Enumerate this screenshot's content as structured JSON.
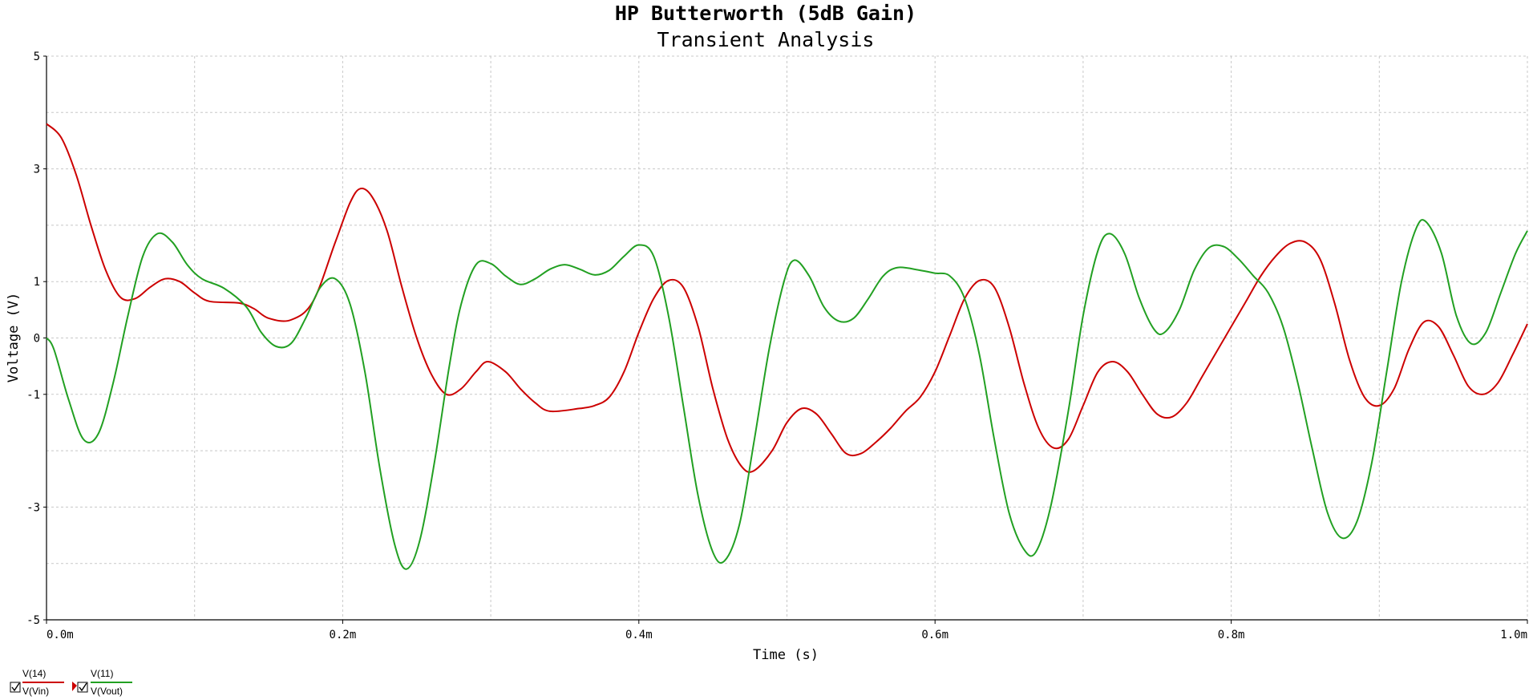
{
  "chart_data": {
    "type": "line",
    "title": "HP Butterworth (5dB Gain)",
    "subtitle": "Transient Analysis",
    "xlabel": "Time (s)",
    "ylabel": "Voltage (V)",
    "xlim": [
      0,
      1.0
    ],
    "ylim": [
      -5,
      5
    ],
    "x_ticks": [
      0,
      0.2,
      0.4,
      0.6,
      0.8,
      1.0
    ],
    "x_tick_labels": [
      "0.0m",
      "0.2m",
      "0.4m",
      "0.6m",
      "0.8m",
      "1.0m"
    ],
    "y_ticks": [
      5,
      3,
      1,
      0,
      -1,
      -3,
      -5
    ],
    "y_tick_labels": [
      "5",
      "3",
      "1",
      "0",
      "-1",
      "-3",
      "-5"
    ],
    "grid": true,
    "legend_placement": "bottom-left",
    "x_unit_note": "x values in ms",
    "series": [
      {
        "name": "V(Vin)",
        "trace": "V(14)",
        "color": "#cc0000",
        "points": [
          [
            0,
            3.8
          ],
          [
            0.01,
            3.55
          ],
          [
            0.02,
            2.9
          ],
          [
            0.03,
            2.0
          ],
          [
            0.04,
            1.2
          ],
          [
            0.05,
            0.72
          ],
          [
            0.06,
            0.7
          ],
          [
            0.07,
            0.9
          ],
          [
            0.08,
            1.05
          ],
          [
            0.09,
            1.0
          ],
          [
            0.1,
            0.8
          ],
          [
            0.11,
            0.65
          ],
          [
            0.13,
            0.62
          ],
          [
            0.14,
            0.52
          ],
          [
            0.15,
            0.35
          ],
          [
            0.165,
            0.32
          ],
          [
            0.18,
            0.65
          ],
          [
            0.195,
            1.7
          ],
          [
            0.205,
            2.4
          ],
          [
            0.212,
            2.65
          ],
          [
            0.22,
            2.5
          ],
          [
            0.23,
            1.9
          ],
          [
            0.24,
            0.9
          ],
          [
            0.25,
            0.0
          ],
          [
            0.26,
            -0.65
          ],
          [
            0.27,
            -1.0
          ],
          [
            0.28,
            -0.9
          ],
          [
            0.29,
            -0.6
          ],
          [
            0.298,
            -0.42
          ],
          [
            0.31,
            -0.6
          ],
          [
            0.32,
            -0.9
          ],
          [
            0.33,
            -1.15
          ],
          [
            0.34,
            -1.3
          ],
          [
            0.36,
            -1.25
          ],
          [
            0.37,
            -1.2
          ],
          [
            0.38,
            -1.05
          ],
          [
            0.39,
            -0.6
          ],
          [
            0.4,
            0.1
          ],
          [
            0.41,
            0.7
          ],
          [
            0.42,
            1.02
          ],
          [
            0.43,
            0.9
          ],
          [
            0.44,
            0.2
          ],
          [
            0.45,
            -0.9
          ],
          [
            0.46,
            -1.8
          ],
          [
            0.47,
            -2.3
          ],
          [
            0.478,
            -2.35
          ],
          [
            0.49,
            -2.0
          ],
          [
            0.5,
            -1.5
          ],
          [
            0.51,
            -1.25
          ],
          [
            0.52,
            -1.35
          ],
          [
            0.53,
            -1.7
          ],
          [
            0.54,
            -2.05
          ],
          [
            0.55,
            -2.05
          ],
          [
            0.56,
            -1.85
          ],
          [
            0.57,
            -1.6
          ],
          [
            0.58,
            -1.3
          ],
          [
            0.59,
            -1.05
          ],
          [
            0.6,
            -0.6
          ],
          [
            0.61,
            0.05
          ],
          [
            0.62,
            0.7
          ],
          [
            0.63,
            1.02
          ],
          [
            0.64,
            0.9
          ],
          [
            0.65,
            0.2
          ],
          [
            0.66,
            -0.8
          ],
          [
            0.67,
            -1.6
          ],
          [
            0.68,
            -1.95
          ],
          [
            0.69,
            -1.8
          ],
          [
            0.7,
            -1.2
          ],
          [
            0.71,
            -0.6
          ],
          [
            0.72,
            -0.42
          ],
          [
            0.73,
            -0.6
          ],
          [
            0.74,
            -1.0
          ],
          [
            0.75,
            -1.35
          ],
          [
            0.76,
            -1.4
          ],
          [
            0.77,
            -1.15
          ],
          [
            0.78,
            -0.7
          ],
          [
            0.79,
            -0.25
          ],
          [
            0.8,
            0.2
          ],
          [
            0.81,
            0.65
          ],
          [
            0.82,
            1.1
          ],
          [
            0.83,
            1.45
          ],
          [
            0.84,
            1.68
          ],
          [
            0.85,
            1.7
          ],
          [
            0.86,
            1.4
          ],
          [
            0.87,
            0.6
          ],
          [
            0.88,
            -0.4
          ],
          [
            0.89,
            -1.05
          ],
          [
            0.9,
            -1.2
          ],
          [
            0.91,
            -0.9
          ],
          [
            0.92,
            -0.2
          ],
          [
            0.93,
            0.28
          ],
          [
            0.94,
            0.2
          ],
          [
            0.95,
            -0.3
          ],
          [
            0.96,
            -0.85
          ],
          [
            0.97,
            -1.0
          ],
          [
            0.98,
            -0.8
          ],
          [
            0.99,
            -0.3
          ],
          [
            1.0,
            0.25
          ]
        ]
      },
      {
        "name": "V(Vout)",
        "trace": "V(11)",
        "color": "#22a022",
        "points": [
          [
            0,
            0.0
          ],
          [
            0.005,
            -0.2
          ],
          [
            0.015,
            -1.1
          ],
          [
            0.025,
            -1.8
          ],
          [
            0.035,
            -1.7
          ],
          [
            0.045,
            -0.8
          ],
          [
            0.055,
            0.4
          ],
          [
            0.065,
            1.45
          ],
          [
            0.075,
            1.85
          ],
          [
            0.085,
            1.7
          ],
          [
            0.095,
            1.3
          ],
          [
            0.105,
            1.05
          ],
          [
            0.12,
            0.88
          ],
          [
            0.135,
            0.55
          ],
          [
            0.145,
            0.1
          ],
          [
            0.155,
            -0.15
          ],
          [
            0.165,
            -0.1
          ],
          [
            0.175,
            0.35
          ],
          [
            0.185,
            0.9
          ],
          [
            0.195,
            1.05
          ],
          [
            0.205,
            0.6
          ],
          [
            0.215,
            -0.6
          ],
          [
            0.225,
            -2.3
          ],
          [
            0.235,
            -3.65
          ],
          [
            0.243,
            -4.1
          ],
          [
            0.252,
            -3.6
          ],
          [
            0.262,
            -2.2
          ],
          [
            0.272,
            -0.5
          ],
          [
            0.28,
            0.6
          ],
          [
            0.29,
            1.3
          ],
          [
            0.3,
            1.32
          ],
          [
            0.31,
            1.1
          ],
          [
            0.32,
            0.95
          ],
          [
            0.33,
            1.05
          ],
          [
            0.34,
            1.22
          ],
          [
            0.35,
            1.3
          ],
          [
            0.36,
            1.22
          ],
          [
            0.37,
            1.12
          ],
          [
            0.38,
            1.2
          ],
          [
            0.39,
            1.45
          ],
          [
            0.4,
            1.65
          ],
          [
            0.41,
            1.45
          ],
          [
            0.42,
            0.4
          ],
          [
            0.43,
            -1.2
          ],
          [
            0.44,
            -2.8
          ],
          [
            0.45,
            -3.8
          ],
          [
            0.458,
            -3.95
          ],
          [
            0.468,
            -3.3
          ],
          [
            0.478,
            -1.8
          ],
          [
            0.488,
            -0.2
          ],
          [
            0.498,
            1.0
          ],
          [
            0.505,
            1.38
          ],
          [
            0.515,
            1.1
          ],
          [
            0.525,
            0.55
          ],
          [
            0.535,
            0.3
          ],
          [
            0.545,
            0.35
          ],
          [
            0.555,
            0.7
          ],
          [
            0.565,
            1.1
          ],
          [
            0.575,
            1.25
          ],
          [
            0.59,
            1.2
          ],
          [
            0.6,
            1.15
          ],
          [
            0.61,
            1.1
          ],
          [
            0.62,
            0.7
          ],
          [
            0.63,
            -0.3
          ],
          [
            0.64,
            -1.8
          ],
          [
            0.65,
            -3.1
          ],
          [
            0.66,
            -3.75
          ],
          [
            0.668,
            -3.8
          ],
          [
            0.678,
            -3.0
          ],
          [
            0.69,
            -1.3
          ],
          [
            0.7,
            0.4
          ],
          [
            0.71,
            1.55
          ],
          [
            0.718,
            1.85
          ],
          [
            0.728,
            1.5
          ],
          [
            0.738,
            0.7
          ],
          [
            0.748,
            0.15
          ],
          [
            0.755,
            0.1
          ],
          [
            0.765,
            0.5
          ],
          [
            0.775,
            1.2
          ],
          [
            0.785,
            1.6
          ],
          [
            0.795,
            1.62
          ],
          [
            0.805,
            1.4
          ],
          [
            0.815,
            1.1
          ],
          [
            0.825,
            0.8
          ],
          [
            0.835,
            0.2
          ],
          [
            0.845,
            -0.8
          ],
          [
            0.855,
            -2.0
          ],
          [
            0.865,
            -3.1
          ],
          [
            0.875,
            -3.55
          ],
          [
            0.885,
            -3.25
          ],
          [
            0.895,
            -2.2
          ],
          [
            0.905,
            -0.6
          ],
          [
            0.915,
            1.0
          ],
          [
            0.925,
            1.95
          ],
          [
            0.932,
            2.05
          ],
          [
            0.942,
            1.5
          ],
          [
            0.952,
            0.4
          ],
          [
            0.962,
            -0.1
          ],
          [
            0.972,
            0.1
          ],
          [
            0.982,
            0.8
          ],
          [
            0.992,
            1.5
          ],
          [
            1.0,
            1.9
          ]
        ]
      }
    ]
  },
  "legend": {
    "items": [
      {
        "trace": "V(14)",
        "label": "V(Vin)",
        "color": "#cc0000"
      },
      {
        "trace": "V(11)",
        "label": "V(Vout)",
        "color": "#22a022"
      }
    ]
  }
}
